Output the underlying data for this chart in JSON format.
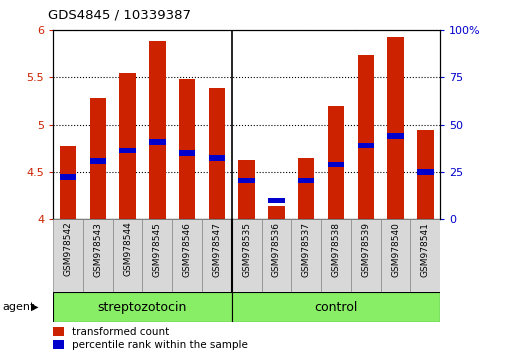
{
  "title": "GDS4845 / 10339387",
  "samples": [
    "GSM978542",
    "GSM978543",
    "GSM978544",
    "GSM978545",
    "GSM978546",
    "GSM978547",
    "GSM978535",
    "GSM978536",
    "GSM978537",
    "GSM978538",
    "GSM978539",
    "GSM978540",
    "GSM978541"
  ],
  "red_values": [
    4.78,
    5.28,
    5.55,
    5.88,
    5.48,
    5.39,
    4.63,
    4.14,
    4.65,
    5.2,
    5.74,
    5.93,
    4.95
  ],
  "blue_values": [
    4.45,
    4.62,
    4.73,
    4.82,
    4.7,
    4.65,
    4.41,
    4.2,
    4.41,
    4.58,
    4.78,
    4.88,
    4.5
  ],
  "ylim_left": [
    4.0,
    6.0
  ],
  "ylim_right": [
    0,
    100
  ],
  "yticks_left": [
    4.0,
    4.5,
    5.0,
    5.5,
    6.0
  ],
  "yticks_left_labels": [
    "4",
    "4.5",
    "5",
    "5.5",
    "6"
  ],
  "yticks_right": [
    0,
    25,
    50,
    75,
    100
  ],
  "yticks_right_labels": [
    "0",
    "25",
    "50",
    "75",
    "100%"
  ],
  "bar_color": "#cc2200",
  "dot_color": "#0000cc",
  "bar_width": 0.55,
  "blue_bar_height": 0.06,
  "blue_bar_width": 0.55,
  "strep_label": "streptozotocin",
  "ctrl_label": "control",
  "strep_indices": [
    0,
    1,
    2,
    3,
    4,
    5
  ],
  "ctrl_indices": [
    6,
    7,
    8,
    9,
    10,
    11,
    12
  ],
  "sep_x": 5.5,
  "agent_label": "agent",
  "legend_red": "transformed count",
  "legend_blue": "percentile rank within the sample",
  "group_color": "#88ee66",
  "tick_label_bg": "#d8d8d8",
  "xlim": [
    -0.5,
    12.5
  ]
}
